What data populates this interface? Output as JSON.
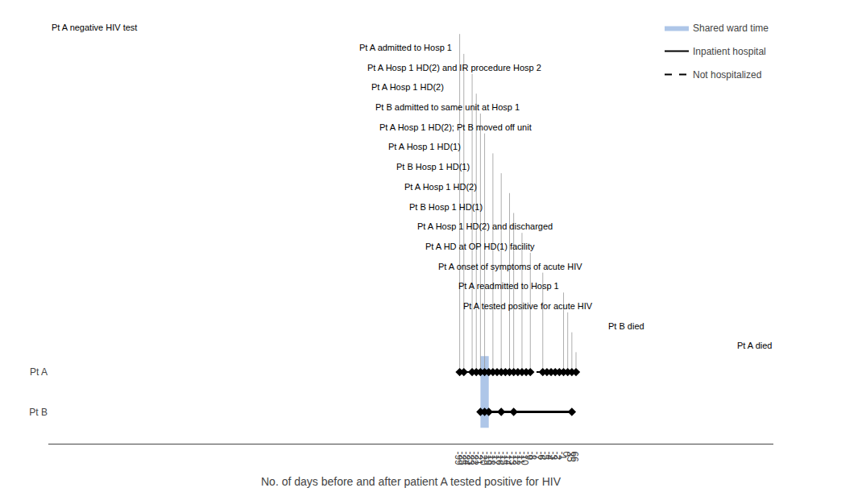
{
  "chart_data": {
    "type": "timeline",
    "xlabel": "No. of days before and after patient A tested positive for HIV",
    "xticks": [
      -99,
      -25,
      -24,
      -23,
      -22,
      -21,
      -20,
      -19,
      -18,
      -17,
      -16,
      -15,
      -14,
      -13,
      -12,
      -11,
      -10,
      -9,
      -8,
      -7,
      -6,
      -5,
      -4,
      -3,
      -2,
      -1,
      0,
      35,
      66
    ],
    "rows": [
      "Pt A",
      "Pt B"
    ],
    "series": [
      {
        "name": "Shared ward time",
        "type": "span",
        "color": "#aec6e8",
        "values": [
          [
            -21,
            -19
          ]
        ]
      },
      {
        "name": "Inpatient hospital",
        "type": "line",
        "line_style": "solid",
        "color": "#000000",
        "values": [
          [
            [
              -25,
              -11
            ],
            [
              -1,
              0
            ]
          ],
          [
            [
              -21,
              35
            ]
          ]
        ]
      },
      {
        "name": "Not hospitalized",
        "type": "line",
        "line_style": "dashed",
        "color": "#000000",
        "values": [
          [
            [
              -99,
              -25
            ],
            [
              -11,
              -1
            ],
            [
              0,
              66
            ]
          ],
          []
        ]
      },
      {
        "type": "scatter",
        "marker": "diamond",
        "color": "#000000",
        "values": [
          [
            -99,
            -25,
            -23,
            -22,
            -21,
            -20,
            -19,
            -18,
            -17,
            -16,
            -15,
            -14,
            -13,
            -12,
            -11,
            -10,
            -9,
            -6,
            -5,
            -4,
            -3,
            -2,
            -1,
            0,
            35,
            66
          ],
          [
            -21,
            -20,
            -19,
            -16,
            -13,
            35
          ]
        ]
      }
    ],
    "annotations": [
      {
        "text": "Pt A negative HIV test",
        "x": -99
      },
      {
        "text": "Pt A admitted to Hosp 1",
        "x": -25
      },
      {
        "text": "Pt A Hosp 1 HD(2) and IR procedure Hosp 2",
        "x": -23
      },
      {
        "text": "Pt A Hosp 1 HD(2)",
        "x": -22
      },
      {
        "text": "Pt B admitted to same unit at Hosp 1",
        "x": -21
      },
      {
        "text": "Pt A Hosp 1 HD(2); Pt B moved off unit",
        "x": -20
      },
      {
        "text": "Pt A Hosp 1 HD(1)",
        "x": -18
      },
      {
        "text": "Pt B Hosp 1 HD(1)",
        "x": -16
      },
      {
        "text": "Pt A Hosp 1 HD(2)",
        "x": -14
      },
      {
        "text": "Pt B Hosp 1 HD(1)",
        "x": -13
      },
      {
        "text": "Pt A Hosp 1 HD(2) and discharged",
        "x": -11
      },
      {
        "text": "Pt A HD at OP HD(1) facility",
        "x": -9
      },
      {
        "text": "Pt A onset of symptoms of acute HIV",
        "x": -6
      },
      {
        "text": "Pt A readmitted to Hosp 1",
        "x": -1
      },
      {
        "text": "Pt A tested positive for acute HIV",
        "x": 0
      },
      {
        "text": "Pt B died",
        "x": 35
      },
      {
        "text": "Pt A died",
        "x": 66
      }
    ],
    "legend": "upper right",
    "grid": false
  }
}
